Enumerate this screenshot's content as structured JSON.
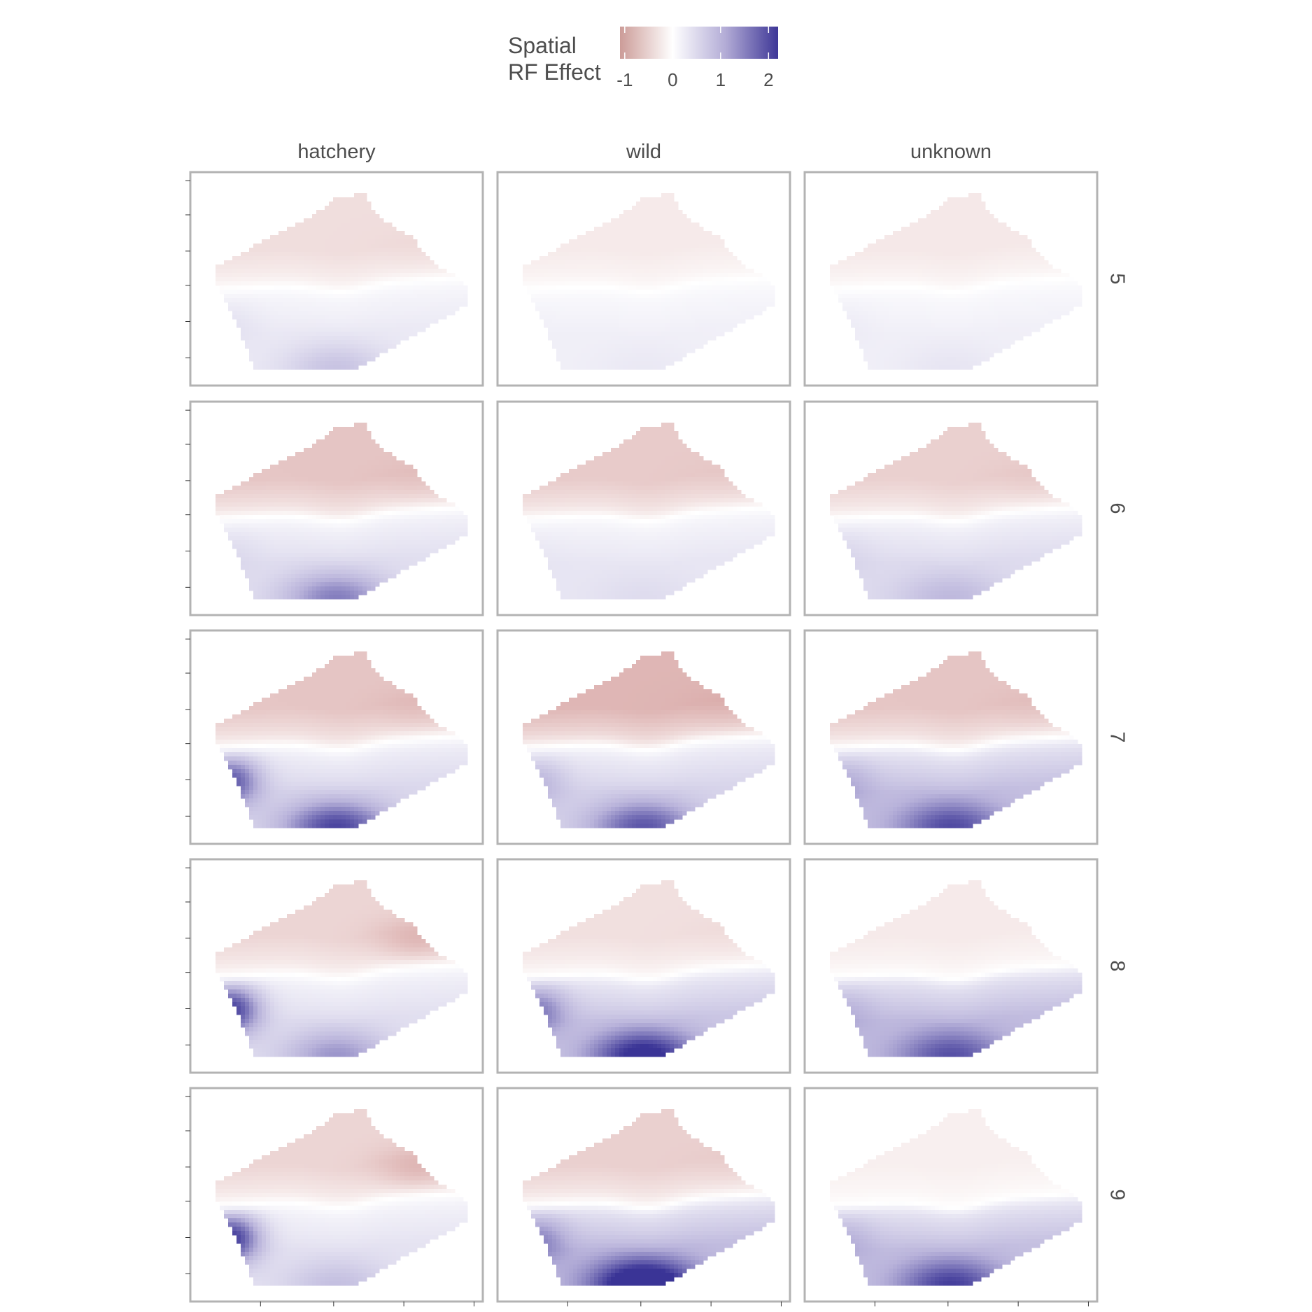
{
  "chart_data": {
    "type": "heatmap",
    "title": "",
    "legend": {
      "title_lines": [
        "Spatial",
        "RF Effect"
      ],
      "position": "top",
      "range": [
        -1.1,
        2.2
      ],
      "ticks": [
        -1,
        0,
        1,
        2
      ],
      "tick_labels": [
        "-1",
        "0",
        "1",
        "2"
      ],
      "palette": {
        "low": "#b2182b",
        "mid": "#ffffff",
        "high": "#2d2596"
      }
    },
    "facets": {
      "columns": [
        "hatchery",
        "wild",
        "unknown"
      ],
      "rows": [
        "5",
        "6",
        "7",
        "8",
        "9"
      ],
      "row_strip_rotation": "clockwise"
    },
    "axes": {
      "xlabel": "",
      "ylabel": "",
      "x_tick_labels": [],
      "y_tick_labels": []
    },
    "field_model": {
      "description_units": "effect value",
      "panels": [
        {
          "row": "5",
          "col": "hatchery",
          "north": -0.32,
          "south": 0.3,
          "south_hot": 0.55,
          "west_hot": 0.15,
          "ne": -0.05
        },
        {
          "row": "5",
          "col": "wild",
          "north": -0.2,
          "south": 0.22,
          "south_hot": 0.1,
          "west_hot": 0.02,
          "ne": 0.0
        },
        {
          "row": "5",
          "col": "unknown",
          "north": -0.22,
          "south": 0.22,
          "south_hot": 0.15,
          "west_hot": 0.08,
          "ne": 0.0
        },
        {
          "row": "6",
          "col": "hatchery",
          "north": -0.55,
          "south": 0.45,
          "south_hot": 1.1,
          "west_hot": 0.15,
          "ne": -0.1
        },
        {
          "row": "6",
          "col": "wild",
          "north": -0.5,
          "south": 0.35,
          "south_hot": 0.15,
          "west_hot": 0.05,
          "ne": -0.05
        },
        {
          "row": "6",
          "col": "unknown",
          "north": -0.45,
          "south": 0.5,
          "south_hot": 0.5,
          "west_hot": 0.15,
          "ne": -0.1
        },
        {
          "row": "7",
          "col": "hatchery",
          "north": -0.55,
          "south": 0.55,
          "south_hot": 1.5,
          "west_hot": 1.4,
          "ne": -0.15
        },
        {
          "row": "7",
          "col": "wild",
          "north": -0.7,
          "south": 0.6,
          "south_hot": 1.3,
          "west_hot": 0.5,
          "ne": -0.1
        },
        {
          "row": "7",
          "col": "unknown",
          "north": -0.55,
          "south": 0.9,
          "south_hot": 1.1,
          "west_hot": 0.4,
          "ne": -0.1
        },
        {
          "row": "8",
          "col": "hatchery",
          "north": -0.4,
          "south": 0.45,
          "south_hot": 0.9,
          "west_hot": 1.7,
          "ne": -0.35
        },
        {
          "row": "8",
          "col": "wild",
          "north": -0.3,
          "south": 0.8,
          "south_hot": 1.6,
          "west_hot": 0.9,
          "ne": -0.05
        },
        {
          "row": "8",
          "col": "unknown",
          "north": -0.2,
          "south": 0.95,
          "south_hot": 1.0,
          "west_hot": 0.3,
          "ne": 0.0
        },
        {
          "row": "9",
          "col": "hatchery",
          "north": -0.4,
          "south": 0.4,
          "south_hot": 0.5,
          "west_hot": 1.8,
          "ne": -0.35
        },
        {
          "row": "9",
          "col": "wild",
          "north": -0.45,
          "south": 0.95,
          "south_hot": 1.9,
          "west_hot": 0.7,
          "ne": -0.05
        },
        {
          "row": "9",
          "col": "unknown",
          "north": -0.15,
          "south": 0.9,
          "south_hot": 1.2,
          "west_hot": 0.35,
          "ne": 0.0
        }
      ]
    }
  }
}
